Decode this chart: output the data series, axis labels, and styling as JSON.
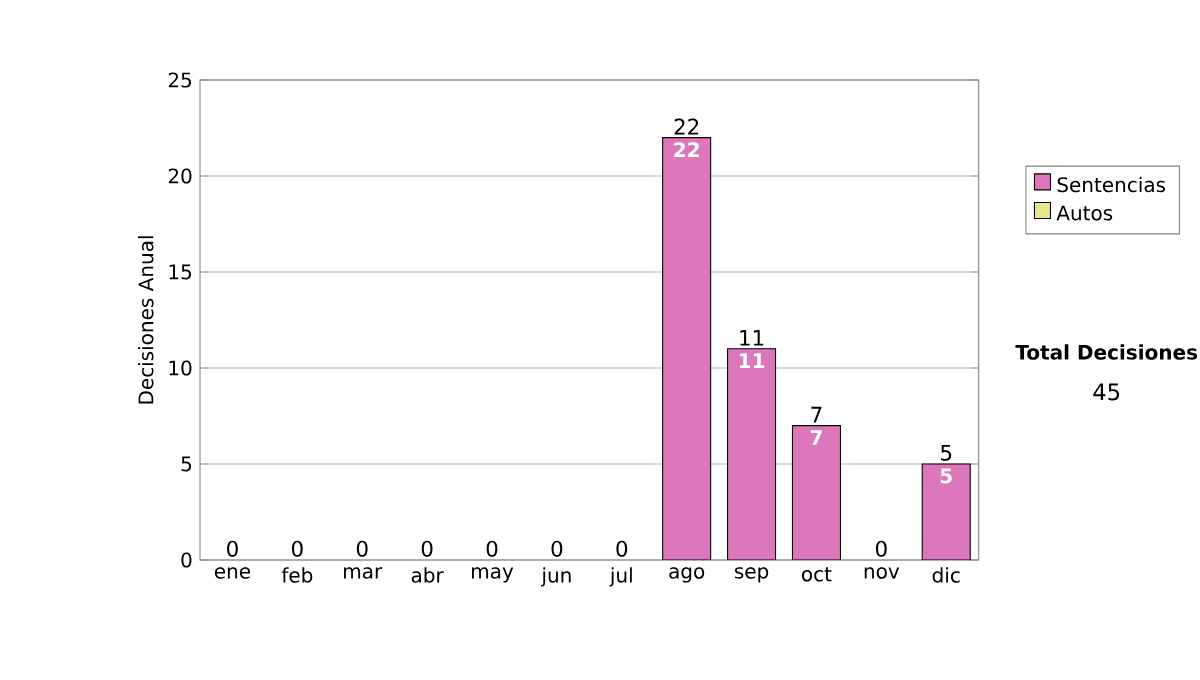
{
  "chart_data": {
    "type": "bar",
    "stacked": true,
    "ylabel": "Decisiones Anual",
    "categories": [
      "ene",
      "feb",
      "mar",
      "abr",
      "may",
      "jun",
      "jul",
      "ago",
      "sep",
      "oct",
      "nov",
      "dic"
    ],
    "series": [
      {
        "name": "Sentencias",
        "color": "#dd77bb",
        "values": [
          0,
          0,
          0,
          0,
          0,
          0,
          0,
          22,
          11,
          7,
          0,
          5
        ],
        "value_labels": [
          null,
          null,
          null,
          null,
          null,
          null,
          null,
          "22",
          "11",
          "7",
          null,
          "5"
        ]
      },
      {
        "name": "Autos",
        "color": "#e6e68c",
        "values": [
          0,
          0,
          0,
          0,
          0,
          0,
          0,
          0,
          0,
          0,
          0,
          0
        ]
      }
    ],
    "totals": [
      "0",
      "0",
      "0",
      "0",
      "0",
      "0",
      "0",
      "22",
      "11",
      "7",
      "0",
      "5"
    ],
    "ylim": [
      0,
      25
    ],
    "yticks": [
      0,
      5,
      10,
      15,
      20,
      25
    ],
    "grid": "y",
    "legend": "right",
    "annotations": [
      "Total Decisiones",
      "45"
    ]
  }
}
